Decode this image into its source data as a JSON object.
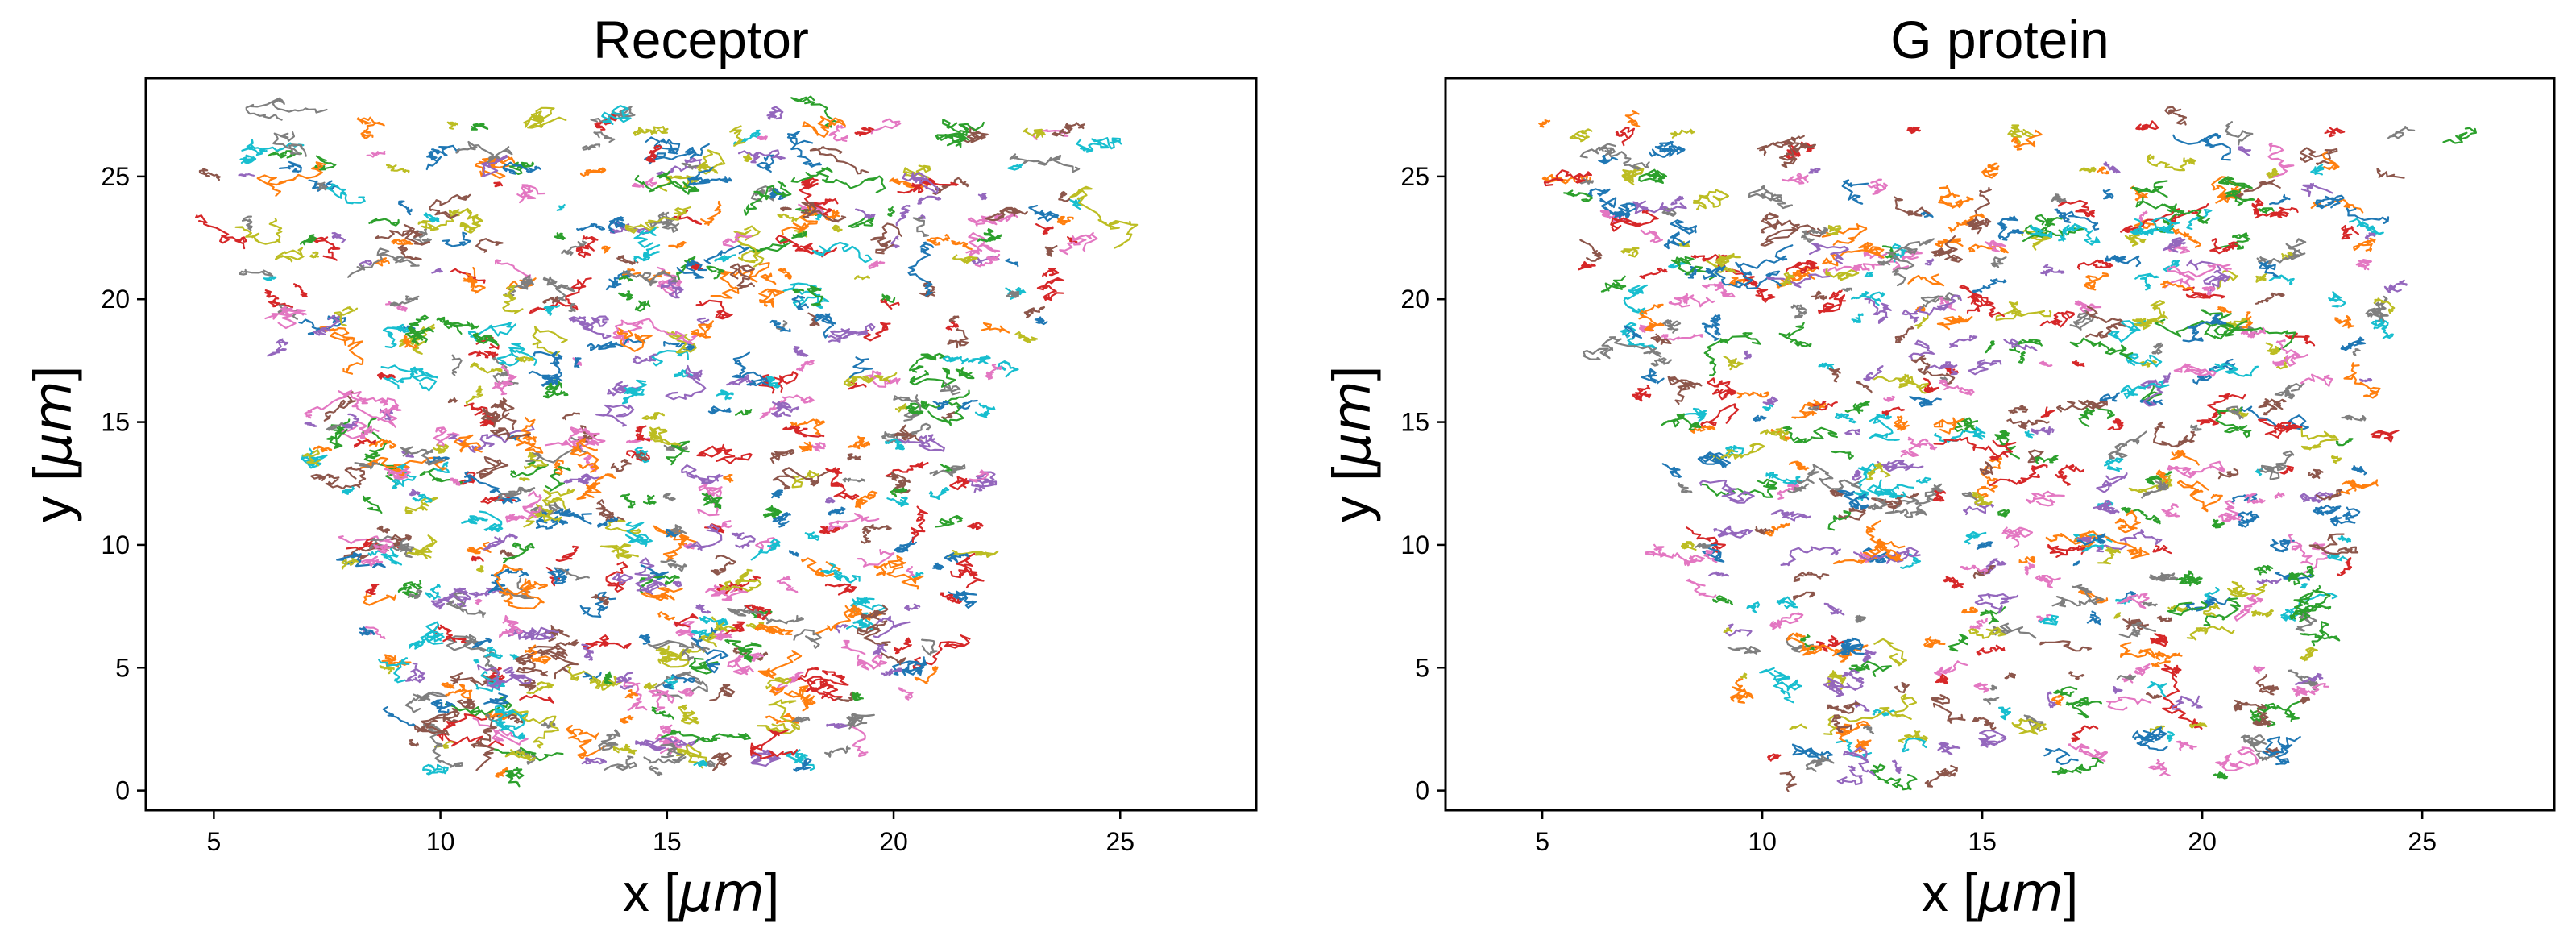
{
  "chart_data": [
    {
      "type": "line",
      "title": "Receptor",
      "xlabel": {
        "prefix": "x [",
        "unit": "μm",
        "suffix": "]"
      },
      "ylabel": {
        "prefix": "y [",
        "unit": "μm",
        "suffix": "]"
      },
      "xlim": [
        3.5,
        28.0
      ],
      "ylim": [
        -0.8,
        29.0
      ],
      "xticks": [
        5,
        10,
        15,
        20,
        25
      ],
      "yticks": [
        0,
        5,
        10,
        15,
        20,
        25
      ],
      "grid": false,
      "legend": "none",
      "region": {
        "y_min": 0.8,
        "y_max": 27.4,
        "x_left_at_top": 4.5,
        "x_right_at_top": 25.0,
        "x_left_at_bottom": 9.5,
        "x_right_at_bottom": 19.8
      },
      "approx_track_count": 700,
      "seed": 17
    },
    {
      "type": "line",
      "title": "G protein",
      "xlabel": {
        "prefix": "x [",
        "unit": "μm",
        "suffix": "]"
      },
      "ylabel": {
        "prefix": "y [",
        "unit": "μm",
        "suffix": "]"
      },
      "xlim": [
        2.8,
        28.0
      ],
      "ylim": [
        -0.8,
        29.0
      ],
      "xticks": [
        5,
        10,
        15,
        20,
        25
      ],
      "yticks": [
        0,
        5,
        10,
        15,
        20,
        25
      ],
      "grid": false,
      "legend": "none",
      "region": {
        "y_min": 0.6,
        "y_max": 27.2,
        "x_left_at_top": 4.8,
        "x_right_at_top": 25.8,
        "x_left_at_bottom": 10.0,
        "x_right_at_bottom": 22.0
      },
      "approx_track_count": 620,
      "seed": 41
    }
  ],
  "colors": {
    "palette": [
      "#1f77b4",
      "#ff7f0e",
      "#2ca02c",
      "#d62728",
      "#9467bd",
      "#8c564b",
      "#e377c2",
      "#7f7f7f",
      "#bcbd22",
      "#17becf"
    ]
  }
}
